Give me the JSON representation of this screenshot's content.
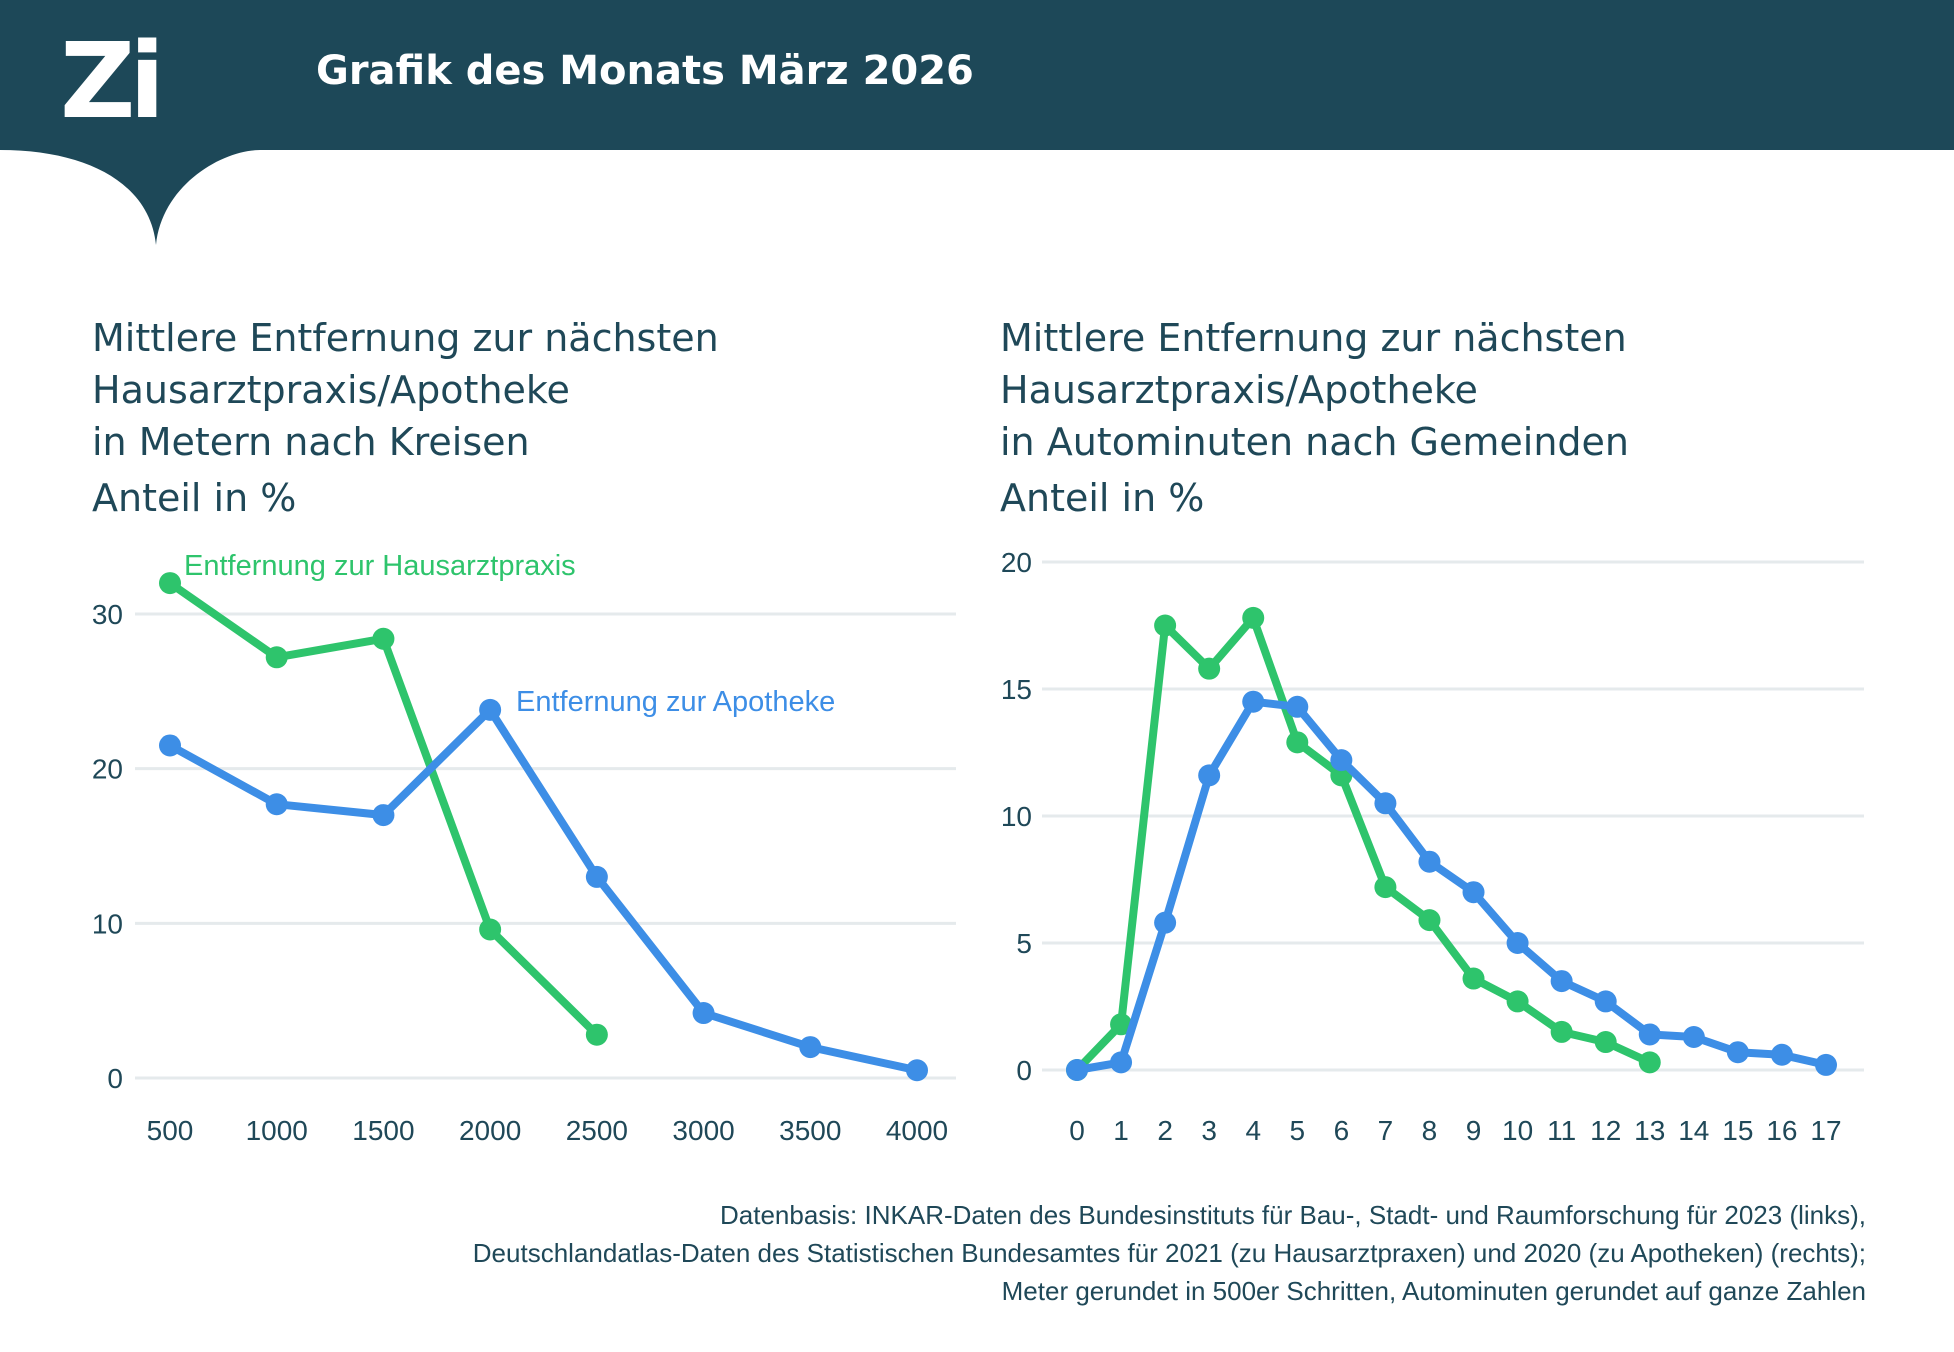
{
  "header": {
    "logo_text": "Zi",
    "title": "Grafik des Monats März 2026"
  },
  "colors": {
    "header_bg": "#1d4858",
    "text": "#1f4858",
    "green": "#2ec46c",
    "blue": "#3d8ee6",
    "grid": "#e5eaec"
  },
  "chart_data": [
    {
      "type": "line",
      "title_lines": [
        "Mittlere Entfernung zur nächsten",
        "Hausarztpraxis/Apotheke",
        "in Metern nach Kreisen"
      ],
      "ylabel": "Anteil in %",
      "xlabel": "",
      "x": [
        500,
        1000,
        1500,
        2000,
        2500,
        3000,
        3500,
        4000
      ],
      "ylim": [
        0,
        30
      ],
      "yticks": [
        0,
        10,
        20,
        30
      ],
      "grid": true,
      "series": [
        {
          "name": "Entfernung zur Hausarztpraxis",
          "color": "green",
          "x": [
            500,
            1000,
            1500,
            2000,
            2500
          ],
          "values": [
            32.0,
            27.2,
            28.4,
            9.6,
            2.8
          ]
        },
        {
          "name": "Entfernung zur Apotheke",
          "color": "blue",
          "x": [
            500,
            1000,
            1500,
            2000,
            2500,
            3000,
            3500,
            4000
          ],
          "values": [
            21.5,
            17.7,
            17.0,
            23.8,
            13.0,
            4.2,
            2.0,
            0.5
          ]
        }
      ]
    },
    {
      "type": "line",
      "title_lines": [
        "Mittlere Entfernung zur nächsten",
        "Hausarztpraxis/Apotheke",
        "in Autominuten nach Gemeinden"
      ],
      "ylabel": "Anteil in %",
      "xlabel": "",
      "x": [
        0,
        1,
        2,
        3,
        4,
        5,
        6,
        7,
        8,
        9,
        10,
        11,
        12,
        13,
        14,
        15,
        16,
        17
      ],
      "ylim": [
        0,
        20
      ],
      "yticks": [
        0,
        5,
        10,
        15,
        20
      ],
      "grid": true,
      "series": [
        {
          "name": "Entfernung zur Hausarztpraxis",
          "color": "green",
          "x": [
            0,
            1,
            2,
            3,
            4,
            5,
            6,
            7,
            8,
            9,
            10,
            11,
            12,
            13
          ],
          "values": [
            0.0,
            1.8,
            17.5,
            15.8,
            17.8,
            12.9,
            11.6,
            7.2,
            5.9,
            3.6,
            2.7,
            1.5,
            1.1,
            0.3
          ]
        },
        {
          "name": "Entfernung zur Apotheke",
          "color": "blue",
          "x": [
            0,
            1,
            2,
            3,
            4,
            5,
            6,
            7,
            8,
            9,
            10,
            11,
            12,
            13,
            14,
            15,
            16,
            17
          ],
          "values": [
            0.0,
            0.3,
            5.8,
            11.6,
            14.5,
            14.3,
            12.2,
            10.5,
            8.2,
            7.0,
            5.0,
            3.5,
            2.7,
            1.4,
            1.3,
            0.7,
            0.6,
            0.2
          ]
        }
      ]
    }
  ],
  "footnote": [
    "Datenbasis: INKAR-Daten des Bundesinstituts für Bau-, Stadt- und Raumforschung für 2023 (links),",
    "Deutschlandatlas-Daten des Statistischen Bundesamtes für 2021 (zu Hausarztpraxen) und 2020 (zu Apotheken) (rechts);",
    "Meter gerundet in 500er Schritten, Autominuten gerundet auf ganze Zahlen"
  ]
}
